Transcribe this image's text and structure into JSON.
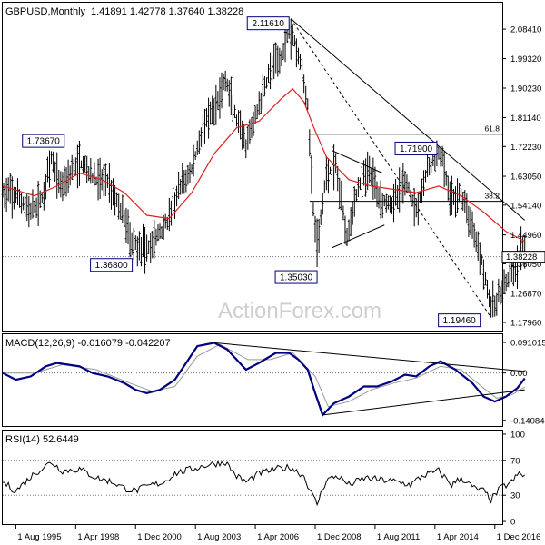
{
  "header": {
    "symbol": "GBPUSD,Monthly",
    "ohlc": "1.41891 1.42778 1.37640 1.38228"
  },
  "watermark": "ActionForex.com",
  "colors": {
    "price": "#000000",
    "ma": "#e02020",
    "macd": "#000080",
    "signal": "#999999",
    "trendline": "#000000",
    "label_border": "#000080",
    "grid_dot": "#777777",
    "watermark": "#cfcfcf"
  },
  "chart_data": [
    {
      "type": "line",
      "name": "price",
      "x_ticks": [
        "1 Aug 1995",
        "1 Apr 1998",
        "1 Dec 2000",
        "1 Aug 2003",
        "1 Apr 2006",
        "1 Dec 2008",
        "1 Aug 2011",
        "1 Apr 2014",
        "1 Dec 2016"
      ],
      "x_range": [
        "1995-01",
        "2017-04"
      ],
      "y_ticks": [
        2.0841,
        1.9932,
        1.9023,
        1.8114,
        1.7223,
        1.6305,
        1.5414,
        1.4496,
        1.3605,
        1.2687,
        1.1796
      ],
      "ylim": [
        1.16,
        2.16
      ],
      "last_price": 1.38228,
      "price_path": [
        [
          "1995-01",
          1.58
        ],
        [
          "1995-08",
          1.57
        ],
        [
          "1996-04",
          1.52
        ],
        [
          "1996-10",
          1.56
        ],
        [
          "1997-03",
          1.68
        ],
        [
          "1997-08",
          1.6
        ],
        [
          "1998-02",
          1.65
        ],
        [
          "1998-08",
          1.67
        ],
        [
          "1999-02",
          1.62
        ],
        [
          "1999-09",
          1.62
        ],
        [
          "2000-06",
          1.5
        ],
        [
          "2000-10",
          1.43
        ],
        [
          "2001-06",
          1.4
        ],
        [
          "2001-12",
          1.45
        ],
        [
          "2002-06",
          1.5
        ],
        [
          "2002-12",
          1.6
        ],
        [
          "2003-06",
          1.65
        ],
        [
          "2003-12",
          1.78
        ],
        [
          "2004-06",
          1.83
        ],
        [
          "2004-12",
          1.93
        ],
        [
          "2005-06",
          1.8
        ],
        [
          "2005-11",
          1.72
        ],
        [
          "2006-06",
          1.85
        ],
        [
          "2006-12",
          1.96
        ],
        [
          "2007-06",
          2.0
        ],
        [
          "2007-11",
          2.1
        ],
        [
          "2008-04",
          1.98
        ],
        [
          "2008-08",
          1.85
        ],
        [
          "2008-11",
          1.53
        ],
        [
          "2009-01",
          1.4
        ],
        [
          "2009-06",
          1.64
        ],
        [
          "2009-11",
          1.66
        ],
        [
          "2010-05",
          1.45
        ],
        [
          "2010-11",
          1.6
        ],
        [
          "2011-05",
          1.65
        ],
        [
          "2011-11",
          1.56
        ],
        [
          "2012-06",
          1.55
        ],
        [
          "2012-12",
          1.62
        ],
        [
          "2013-06",
          1.53
        ],
        [
          "2013-12",
          1.65
        ],
        [
          "2014-07",
          1.71
        ],
        [
          "2014-12",
          1.56
        ],
        [
          "2015-06",
          1.57
        ],
        [
          "2015-12",
          1.48
        ],
        [
          "2016-06",
          1.35
        ],
        [
          "2016-10",
          1.22
        ],
        [
          "2017-01",
          1.25
        ],
        [
          "2017-06",
          1.3
        ],
        [
          "2017-12",
          1.35
        ],
        [
          "2018-02",
          1.41
        ],
        [
          "2018-04",
          1.38
        ]
      ],
      "swing_low_spikes": [
        [
          "1995-06",
          1.5,
          1.63
        ],
        [
          "1998-06",
          1.6,
          1.74
        ],
        [
          "2000-09",
          1.38,
          1.49
        ],
        [
          "2001-06",
          1.368,
          1.45
        ],
        [
          "2007-11",
          1.99,
          2.1161
        ],
        [
          "2009-01",
          1.3503,
          1.5
        ],
        [
          "2014-07",
          1.66,
          1.719
        ],
        [
          "2016-10",
          1.1946,
          1.26
        ],
        [
          "2017-01",
          1.2,
          1.27
        ]
      ],
      "ma_path": [
        [
          "1995-01",
          1.6
        ],
        [
          "1996-06",
          1.57
        ],
        [
          "1997-06",
          1.6
        ],
        [
          "1998-06",
          1.64
        ],
        [
          "1999-06",
          1.62
        ],
        [
          "2000-06",
          1.58
        ],
        [
          "2001-06",
          1.51
        ],
        [
          "2002-06",
          1.5
        ],
        [
          "2003-06",
          1.58
        ],
        [
          "2004-06",
          1.7
        ],
        [
          "2005-06",
          1.78
        ],
        [
          "2006-06",
          1.8
        ],
        [
          "2007-06",
          1.87
        ],
        [
          "2007-12",
          1.9
        ],
        [
          "2008-06",
          1.86
        ],
        [
          "2008-12",
          1.77
        ],
        [
          "2009-06",
          1.69
        ],
        [
          "2010-06",
          1.62
        ],
        [
          "2011-06",
          1.6
        ],
        [
          "2012-06",
          1.59
        ],
        [
          "2013-06",
          1.58
        ],
        [
          "2014-06",
          1.6
        ],
        [
          "2015-06",
          1.57
        ],
        [
          "2016-06",
          1.52
        ],
        [
          "2017-06",
          1.46
        ],
        [
          "2018-04",
          1.43
        ]
      ],
      "swing_labels": [
        {
          "text": "2.11610",
          "date": "2007-11",
          "value": 2.1161,
          "side": "left",
          "yoff": 0
        },
        {
          "text": "1.73670",
          "date": "1997-06",
          "value": 1.7367,
          "side": "left",
          "yoff": 0
        },
        {
          "text": "1.71900",
          "date": "2014-07",
          "value": 1.719,
          "side": "left",
          "yoff": 0
        },
        {
          "text": "1.36800",
          "date": "2001-06",
          "value": 1.368,
          "side": "left",
          "yoff": 0
        },
        {
          "text": "1.35030",
          "date": "2009-01",
          "value": 1.3503,
          "side": "left",
          "yoff": 0
        },
        {
          "text": "1.19460",
          "date": "2016-10",
          "value": 1.1946,
          "side": "left",
          "yoff": 0
        }
      ],
      "fib_levels": [
        {
          "label": "61.8",
          "value": 1.7602,
          "from": "2008-09"
        },
        {
          "label": "38.2",
          "value": 1.5533,
          "from": "2008-09"
        }
      ],
      "trendlines": [
        {
          "from": [
            "2007-11",
            2.1161
          ],
          "to": [
            "2018-04",
            1.495
          ],
          "dashed": false
        },
        {
          "from": [
            "2007-11",
            2.1161
          ],
          "to": [
            "2016-10",
            1.1946
          ],
          "dashed": true
        },
        {
          "from": [
            "2009-09",
            1.71
          ],
          "to": [
            "2011-12",
            1.64
          ],
          "dashed": false
        },
        {
          "from": [
            "2009-09",
            1.41
          ],
          "to": [
            "2012-01",
            1.48
          ],
          "dashed": false
        }
      ]
    },
    {
      "type": "line",
      "name": "MACD",
      "title": "MACD(12,26,9) -0.016079 -0.042207",
      "y_ticks": [
        0.091015,
        0.0,
        -0.140843
      ],
      "ylim": [
        -0.155,
        0.11
      ],
      "macd_path": [
        [
          "1995-01",
          0.0
        ],
        [
          "1995-08",
          -0.02
        ],
        [
          "1996-04",
          -0.01
        ],
        [
          "1996-12",
          0.02
        ],
        [
          "1997-06",
          0.03
        ],
        [
          "1998-06",
          0.02
        ],
        [
          "1999-01",
          0.0
        ],
        [
          "1999-09",
          -0.01
        ],
        [
          "2000-06",
          -0.03
        ],
        [
          "2000-12",
          -0.05
        ],
        [
          "2001-06",
          -0.06
        ],
        [
          "2002-01",
          -0.05
        ],
        [
          "2002-09",
          -0.02
        ],
        [
          "2003-03",
          0.03
        ],
        [
          "2003-09",
          0.08
        ],
        [
          "2004-06",
          0.09
        ],
        [
          "2005-01",
          0.07
        ],
        [
          "2005-11",
          0.01
        ],
        [
          "2006-06",
          0.03
        ],
        [
          "2007-03",
          0.06
        ],
        [
          "2007-10",
          0.06
        ],
        [
          "2008-03",
          0.04
        ],
        [
          "2008-08",
          0.01
        ],
        [
          "2008-12",
          -0.06
        ],
        [
          "2009-04",
          -0.125
        ],
        [
          "2009-10",
          -0.09
        ],
        [
          "2010-06",
          -0.07
        ],
        [
          "2011-02",
          -0.04
        ],
        [
          "2011-09",
          -0.04
        ],
        [
          "2012-05",
          -0.025
        ],
        [
          "2012-12",
          -0.005
        ],
        [
          "2013-06",
          -0.01
        ],
        [
          "2014-01",
          0.02
        ],
        [
          "2014-07",
          0.035
        ],
        [
          "2015-03",
          0.01
        ],
        [
          "2015-12",
          -0.03
        ],
        [
          "2016-06",
          -0.07
        ],
        [
          "2016-12",
          -0.085
        ],
        [
          "2017-06",
          -0.07
        ],
        [
          "2017-12",
          -0.045
        ],
        [
          "2018-04",
          -0.016
        ]
      ],
      "signal_path": [
        [
          "1995-01",
          0.0
        ],
        [
          "1996-06",
          0.0
        ],
        [
          "1997-09",
          0.025
        ],
        [
          "1999-03",
          0.01
        ],
        [
          "2000-09",
          -0.03
        ],
        [
          "2001-09",
          -0.055
        ],
        [
          "2002-09",
          -0.04
        ],
        [
          "2003-09",
          0.05
        ],
        [
          "2004-09",
          0.085
        ],
        [
          "2005-12",
          0.04
        ],
        [
          "2006-12",
          0.04
        ],
        [
          "2007-12",
          0.06
        ],
        [
          "2008-12",
          -0.01
        ],
        [
          "2009-07",
          -0.1
        ],
        [
          "2010-06",
          -0.085
        ],
        [
          "2011-06",
          -0.05
        ],
        [
          "2012-06",
          -0.03
        ],
        [
          "2013-06",
          -0.015
        ],
        [
          "2014-07",
          0.02
        ],
        [
          "2015-06",
          0.01
        ],
        [
          "2016-06",
          -0.045
        ],
        [
          "2017-01",
          -0.075
        ],
        [
          "2017-09",
          -0.065
        ],
        [
          "2018-04",
          -0.042
        ]
      ],
      "trendlines": [
        {
          "from": [
            "2004-06",
            0.09
          ],
          "to": [
            "2018-04",
            0.005
          ]
        },
        {
          "from": [
            "2009-04",
            -0.125
          ],
          "to": [
            "2018-04",
            -0.05
          ]
        }
      ]
    },
    {
      "type": "line",
      "name": "RSI",
      "title": "RSI(14) 52.6449",
      "y_ticks": [
        100,
        70,
        30,
        0
      ],
      "ylim": [
        -2,
        102
      ],
      "rsi_path": [
        [
          "1995-01",
          45
        ],
        [
          "1995-08",
          35
        ],
        [
          "1996-06",
          55
        ],
        [
          "1997-03",
          68
        ],
        [
          "1997-09",
          58
        ],
        [
          "1998-06",
          60
        ],
        [
          "1999-03",
          50
        ],
        [
          "1999-12",
          45
        ],
        [
          "2000-06",
          38
        ],
        [
          "2000-12",
          35
        ],
        [
          "2001-06",
          40
        ],
        [
          "2002-03",
          45
        ],
        [
          "2002-09",
          55
        ],
        [
          "2003-06",
          60
        ],
        [
          "2004-03",
          65
        ],
        [
          "2004-12",
          68
        ],
        [
          "2005-06",
          52
        ],
        [
          "2005-11",
          45
        ],
        [
          "2006-06",
          55
        ],
        [
          "2007-03",
          60
        ],
        [
          "2007-11",
          62
        ],
        [
          "2008-06",
          52
        ],
        [
          "2008-10",
          32
        ],
        [
          "2009-01",
          20
        ],
        [
          "2009-06",
          48
        ],
        [
          "2009-12",
          52
        ],
        [
          "2010-06",
          42
        ],
        [
          "2011-03",
          50
        ],
        [
          "2011-09",
          48
        ],
        [
          "2012-06",
          46
        ],
        [
          "2013-03",
          42
        ],
        [
          "2013-09",
          52
        ],
        [
          "2014-06",
          58
        ],
        [
          "2015-01",
          42
        ],
        [
          "2015-06",
          50
        ],
        [
          "2016-01",
          38
        ],
        [
          "2016-06",
          35
        ],
        [
          "2016-10",
          25
        ],
        [
          "2017-03",
          38
        ],
        [
          "2017-09",
          45
        ],
        [
          "2018-01",
          55
        ],
        [
          "2018-04",
          52
        ]
      ],
      "levels": [
        70,
        30
      ]
    }
  ]
}
